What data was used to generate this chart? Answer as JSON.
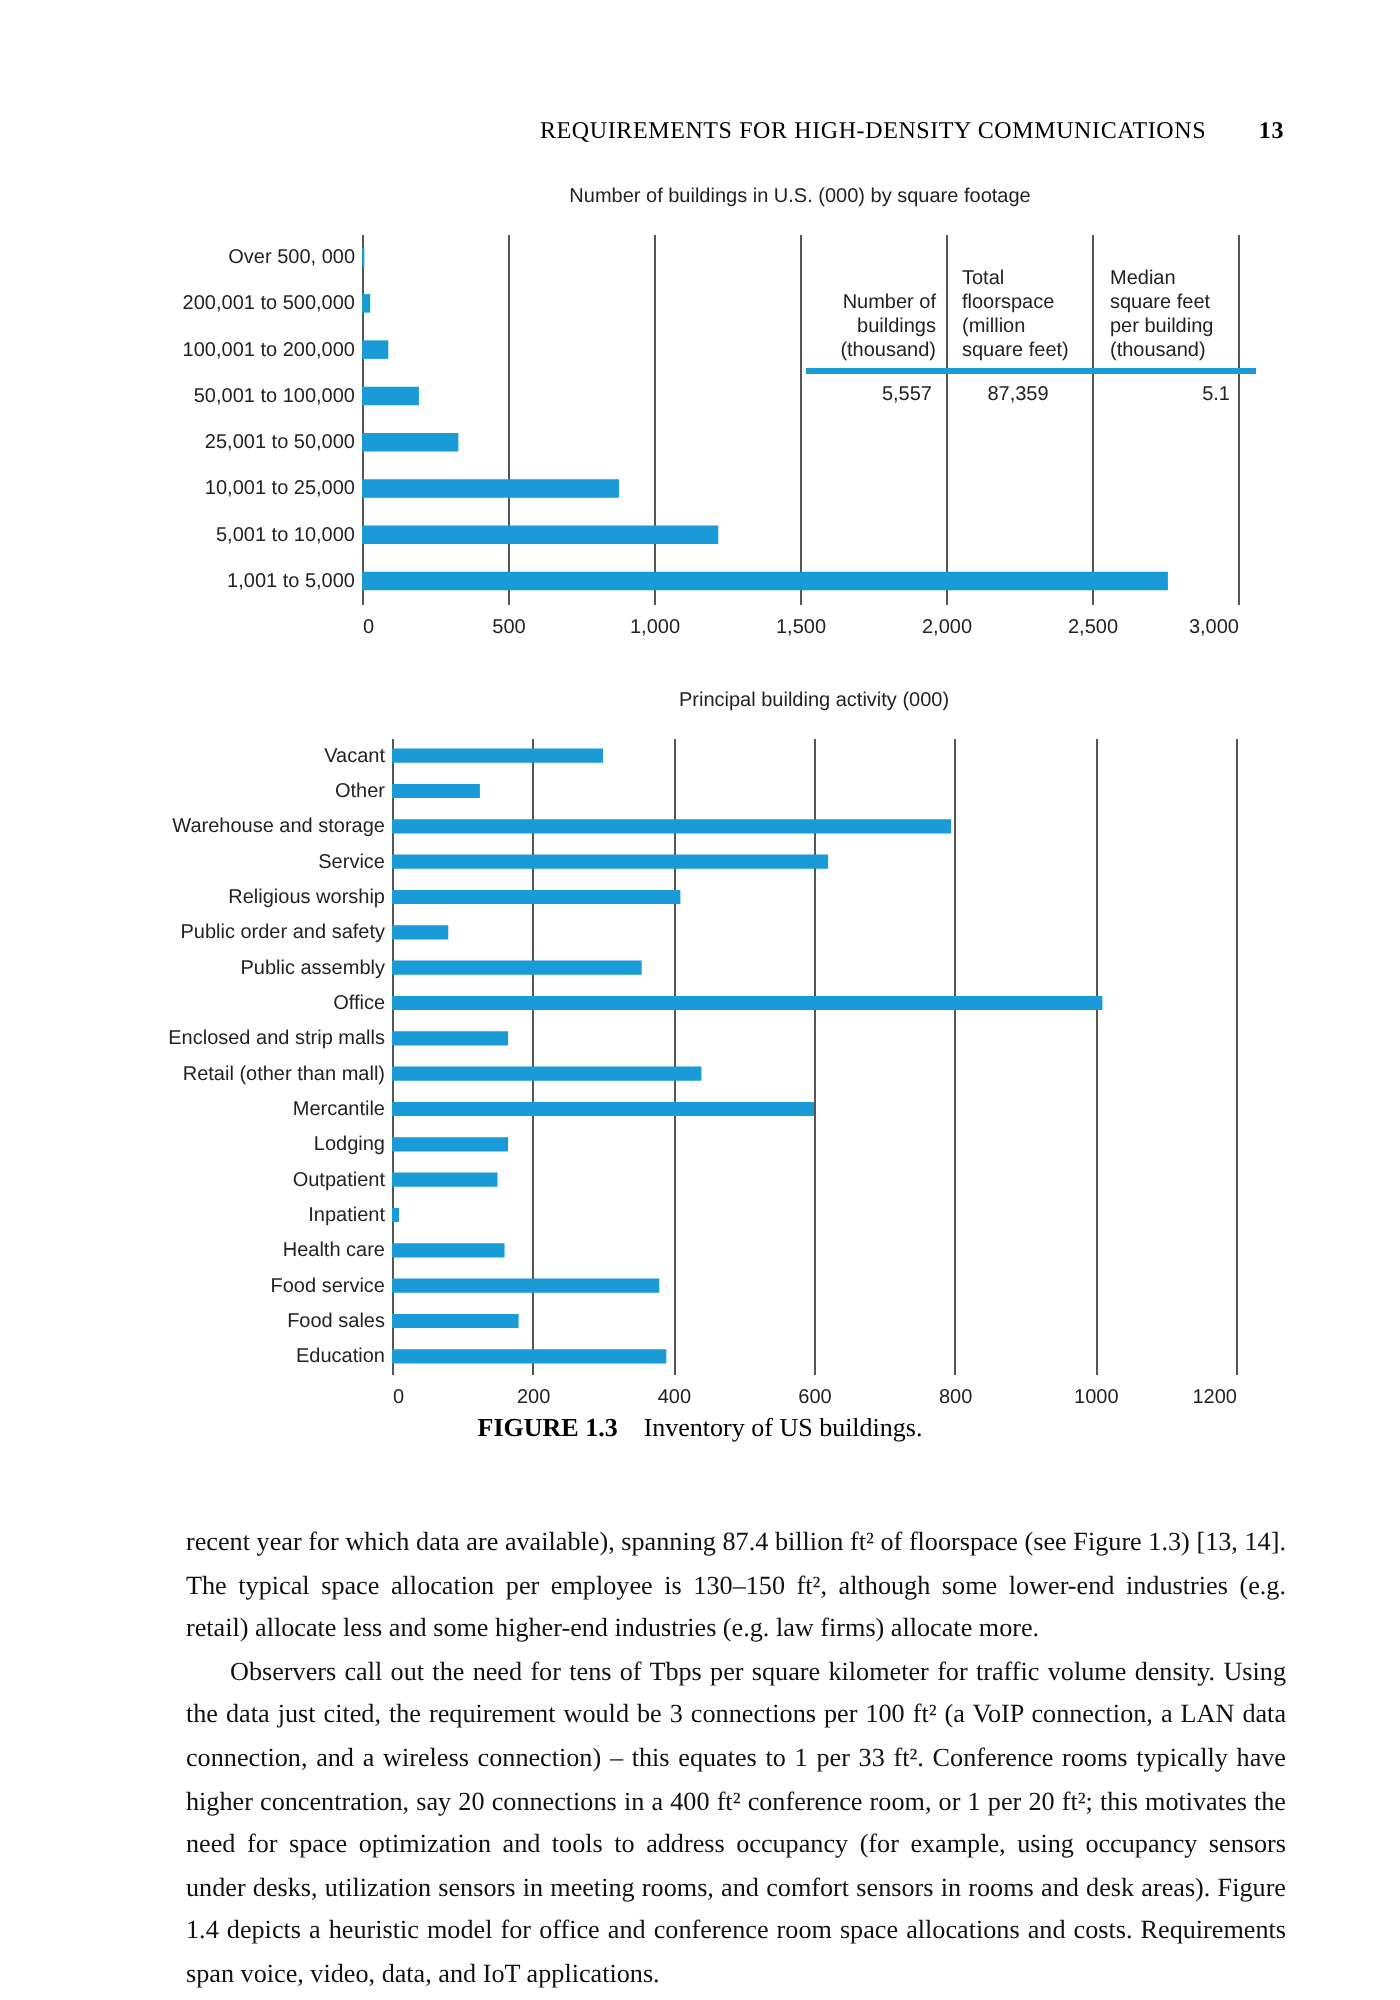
{
  "chart_data": [
    {
      "type": "bar",
      "orientation": "horizontal",
      "title": "Number of buildings in U.S. (000) by square footage",
      "categories": [
        "Over 500, 000",
        "200,001 to 500,000",
        "100,001 to 200,000",
        "50,001 to 100,000",
        "25,001 to 50,000",
        "10,001 to 25,000",
        "5,001 to 10,000",
        "1,001 to 5,000"
      ],
      "values": [
        8,
        28,
        90,
        195,
        330,
        880,
        1220,
        2760
      ],
      "color": "#1a9ad6",
      "xlim": [
        0,
        3000
      ],
      "xticks": [
        0,
        500,
        {
          "value": 1000,
          "label": "1,000"
        },
        {
          "value": 1500,
          "label": "1,500"
        },
        {
          "value": 2000,
          "label": "2,000"
        },
        {
          "value": 2500,
          "label": "2,500"
        },
        {
          "value": 3000,
          "label": "3,000"
        }
      ],
      "grid": "x",
      "annotations": [
        "REQUIREMENTS FOR HIGH-DENSITY COMMUNICATIONS 13",
        "Number of buildings (thousand)",
        "Total floorspace (million square feet)",
        "Median square feet per building (thousand)",
        "5,557",
        "87,359",
        "5.1"
      ]
    },
    {
      "type": "bar",
      "orientation": "horizontal",
      "title": "Principal building activity (000)",
      "categories": [
        "Vacant",
        "Other",
        "Warehouse and storage",
        "Service",
        "Religious worship",
        "Public order and safety",
        "Public assembly",
        "Office",
        "Enclosed and strip malls",
        "Retail (other than mall)",
        "Mercantile",
        "Lodging",
        "Outpatient",
        "Inpatient",
        "Health care",
        "Food service",
        "Food sales",
        "Education"
      ],
      "values": [
        300,
        125,
        795,
        620,
        410,
        80,
        355,
        1010,
        165,
        440,
        600,
        165,
        150,
        10,
        160,
        380,
        180,
        390
      ],
      "color": "#1a9ad6",
      "xlim": [
        0,
        1200
      ],
      "xticks": [
        0,
        200,
        400,
        600,
        800,
        1000,
        1200
      ],
      "grid": "x",
      "annotations": [
        "FIGURE 1.3 Inventory of US buildings.",
        "recent year for which data are available), spanning 87.4 billion ft² of floorspace (see Figure 1.3) [13, 14]. The typical space allocation per employee is 130–150 ft², although some lower-end industries (e.g. retail) allocate less and some higher-end industries (e.g. law firms) allocate more.",
        "Observers call out the need for tens of Tbps per square kilometer for traffic volume density. Using the data just cited, the requirement would be 3 connections per 100 ft² (a VoIP connection, a LAN data connection, and a wireless connection) – this equates to 1 per 33 ft². Conference rooms typically have higher concentration, say 20 connections in a 400 ft² conference room, or 1 per 20 ft²; this motivates the need for space optimization and tools to address occupancy (for example, using occupancy sensors under desks, utilization sensors in meeting rooms, and comfort sensors in rooms and desk areas). Figure 1.4 depicts a heuristic model for office and conference room space allocations and costs. Requirements span voice, video, data, and IoT applications."
      ]
    }
  ]
}
